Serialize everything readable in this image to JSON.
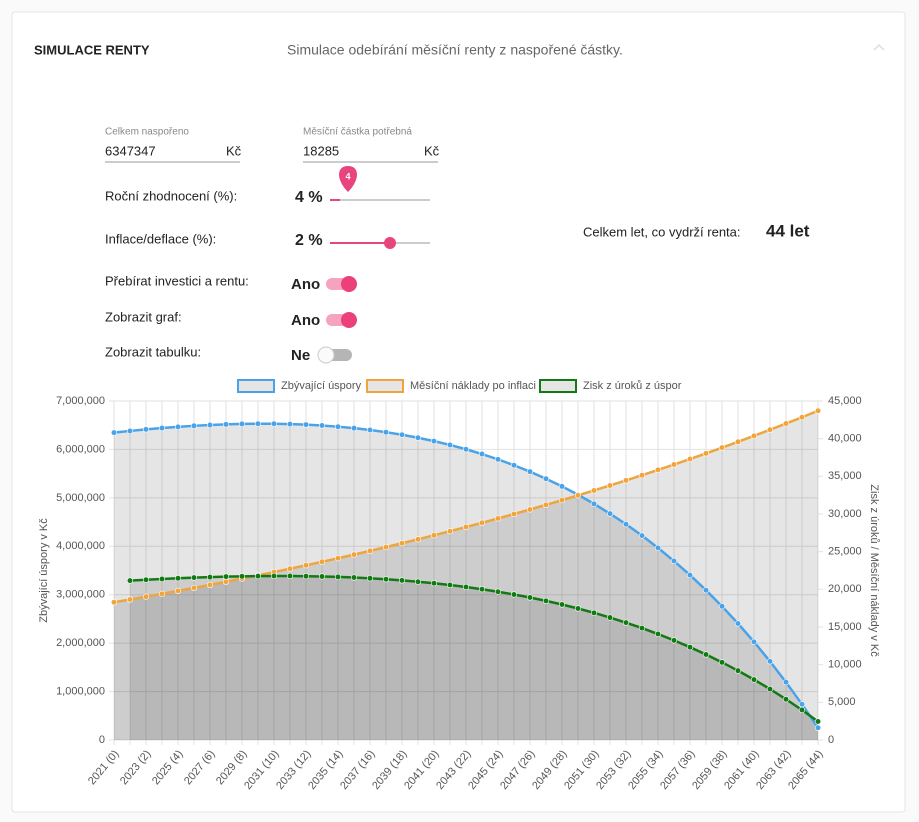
{
  "header": {
    "title": "SIMULACE RENTY",
    "subtitle": "Simulace odebírání měsíční renty z naspořené částky."
  },
  "form": {
    "saved": {
      "label": "Celkem naspořeno",
      "value": "6347347",
      "unit": "Kč"
    },
    "monthly": {
      "label": "Měsíční částka potřebná",
      "value": "18285",
      "unit": "Kč"
    },
    "rate": {
      "label": "Roční zhodnocení (%):",
      "value": "4 %",
      "bubble": "4"
    },
    "inflation": {
      "label": "Inflace/deflace (%):",
      "value": "2 %"
    },
    "toggles": [
      {
        "label": "Přebírat investici a rentu:",
        "value": "Ano",
        "on": true
      },
      {
        "label": "Zobrazit graf:",
        "value": "Ano",
        "on": true
      },
      {
        "label": "Zobrazit tabulku:",
        "value": "Ne",
        "on": false
      }
    ],
    "result": {
      "label": "Celkem let, co vydrží renta:",
      "value": "44 let"
    }
  },
  "chart_data": {
    "type": "line",
    "categories": [
      "2021 (0)",
      null,
      "2023 (2)",
      null,
      "2025 (4)",
      null,
      "2027 (6)",
      null,
      "2029 (8)",
      null,
      "2031 (10)",
      null,
      "2033 (12)",
      null,
      "2035 (14)",
      null,
      "2037 (16)",
      null,
      "2039 (18)",
      null,
      "2041 (20)",
      null,
      "2043 (22)",
      null,
      "2045 (24)",
      null,
      "2047 (26)",
      null,
      "2049 (28)",
      null,
      "2051 (30)",
      null,
      "2053 (32)",
      null,
      "2055 (34)",
      null,
      "2057 (36)",
      null,
      "2059 (38)",
      null,
      "2061 (40)",
      null,
      "2063 (42)",
      null,
      "2065 (44)"
    ],
    "series": [
      {
        "name": "Zbývající úspory",
        "color": "#4aa3e8",
        "axis": "y",
        "values": [
          6347347,
          6381821,
          6413282,
          6441525,
          6466338,
          6487688,
          6504940,
          6518034,
          6526707,
          6530687,
          6529678,
          6523385,
          6511488,
          6493668,
          6469567,
          6438826,
          6401059,
          6355877,
          6302864,
          6241587,
          6171594,
          6092406,
          6003534,
          5904447,
          5794617,
          5673470,
          5540421,
          5394850,
          5236112,
          5063536,
          4876413,
          4674018,
          4455571,
          4220286,
          3967309,
          3695777,
          3404780,
          3093371,
          2760554,
          2405292,
          2026508,
          1623068,
          1193807,
          737487,
          252834
        ]
      },
      {
        "name": "Měsíční náklady po inflaci",
        "color": "#f0a43c",
        "axis": "y2",
        "values": [
          18285,
          18651,
          19024,
          19404,
          19792,
          20188,
          20592,
          21004,
          21424,
          21853,
          22290,
          22736,
          23190,
          23654,
          24127,
          24610,
          25102,
          25604,
          26116,
          26638,
          27171,
          27714,
          28269,
          28834,
          29411,
          29999,
          30599,
          31211,
          31835,
          32472,
          33121,
          33784,
          34459,
          35149,
          35852,
          36569,
          37300,
          38046,
          38807,
          39583,
          40375,
          41182,
          42006,
          42846,
          43703
        ]
      },
      {
        "name": "Zisk z úroků z úspor",
        "color": "#127a12",
        "axis": "y2",
        "values": [
          null,
          21158,
          21273,
          21378,
          21472,
          21554,
          21626,
          21683,
          21727,
          21756,
          21769,
          21766,
          21745,
          21705,
          21646,
          21565,
          21463,
          21337,
          21186,
          21010,
          20805,
          20572,
          20308,
          20012,
          19682,
          19315,
          18912,
          18468,
          17983,
          17454,
          16878,
          16255,
          15580,
          14852,
          14068,
          13224,
          12319,
          11349,
          10311,
          9202,
          8018,
          6755,
          5410,
          3979,
          2458
        ]
      }
    ],
    "ylabel": "Zbývající úspory v Kč",
    "y2label": "Zisk z úroků / Měsíční náklady v Kč",
    "ylim": [
      0,
      7000000
    ],
    "yticks": [
      0,
      {
        "value": 1000000,
        "label": "1,000,000"
      },
      {
        "value": 2000000,
        "label": "2,000,000"
      },
      {
        "value": 3000000,
        "label": "3,000,000"
      },
      {
        "value": 4000000,
        "label": "4,000,000"
      },
      {
        "value": 5000000,
        "label": "5,000,000"
      },
      {
        "value": 6000000,
        "label": "6,000,000"
      },
      {
        "value": 7000000,
        "label": "7,000,000"
      }
    ],
    "y2lim": [
      0,
      45000
    ],
    "y2ticks": [
      0,
      {
        "value": 5000,
        "label": "5,000"
      },
      {
        "value": 10000,
        "label": "10,000"
      },
      {
        "value": 15000,
        "label": "15,000"
      },
      {
        "value": 20000,
        "label": "20,000"
      },
      {
        "value": 25000,
        "label": "25,000"
      },
      {
        "value": 30000,
        "label": "30,000"
      },
      {
        "value": 35000,
        "label": "35,000"
      },
      {
        "value": 40000,
        "label": "40,000"
      },
      {
        "value": 45000,
        "label": "45,000"
      }
    ],
    "grid": true,
    "legend": "top",
    "fill": true
  }
}
